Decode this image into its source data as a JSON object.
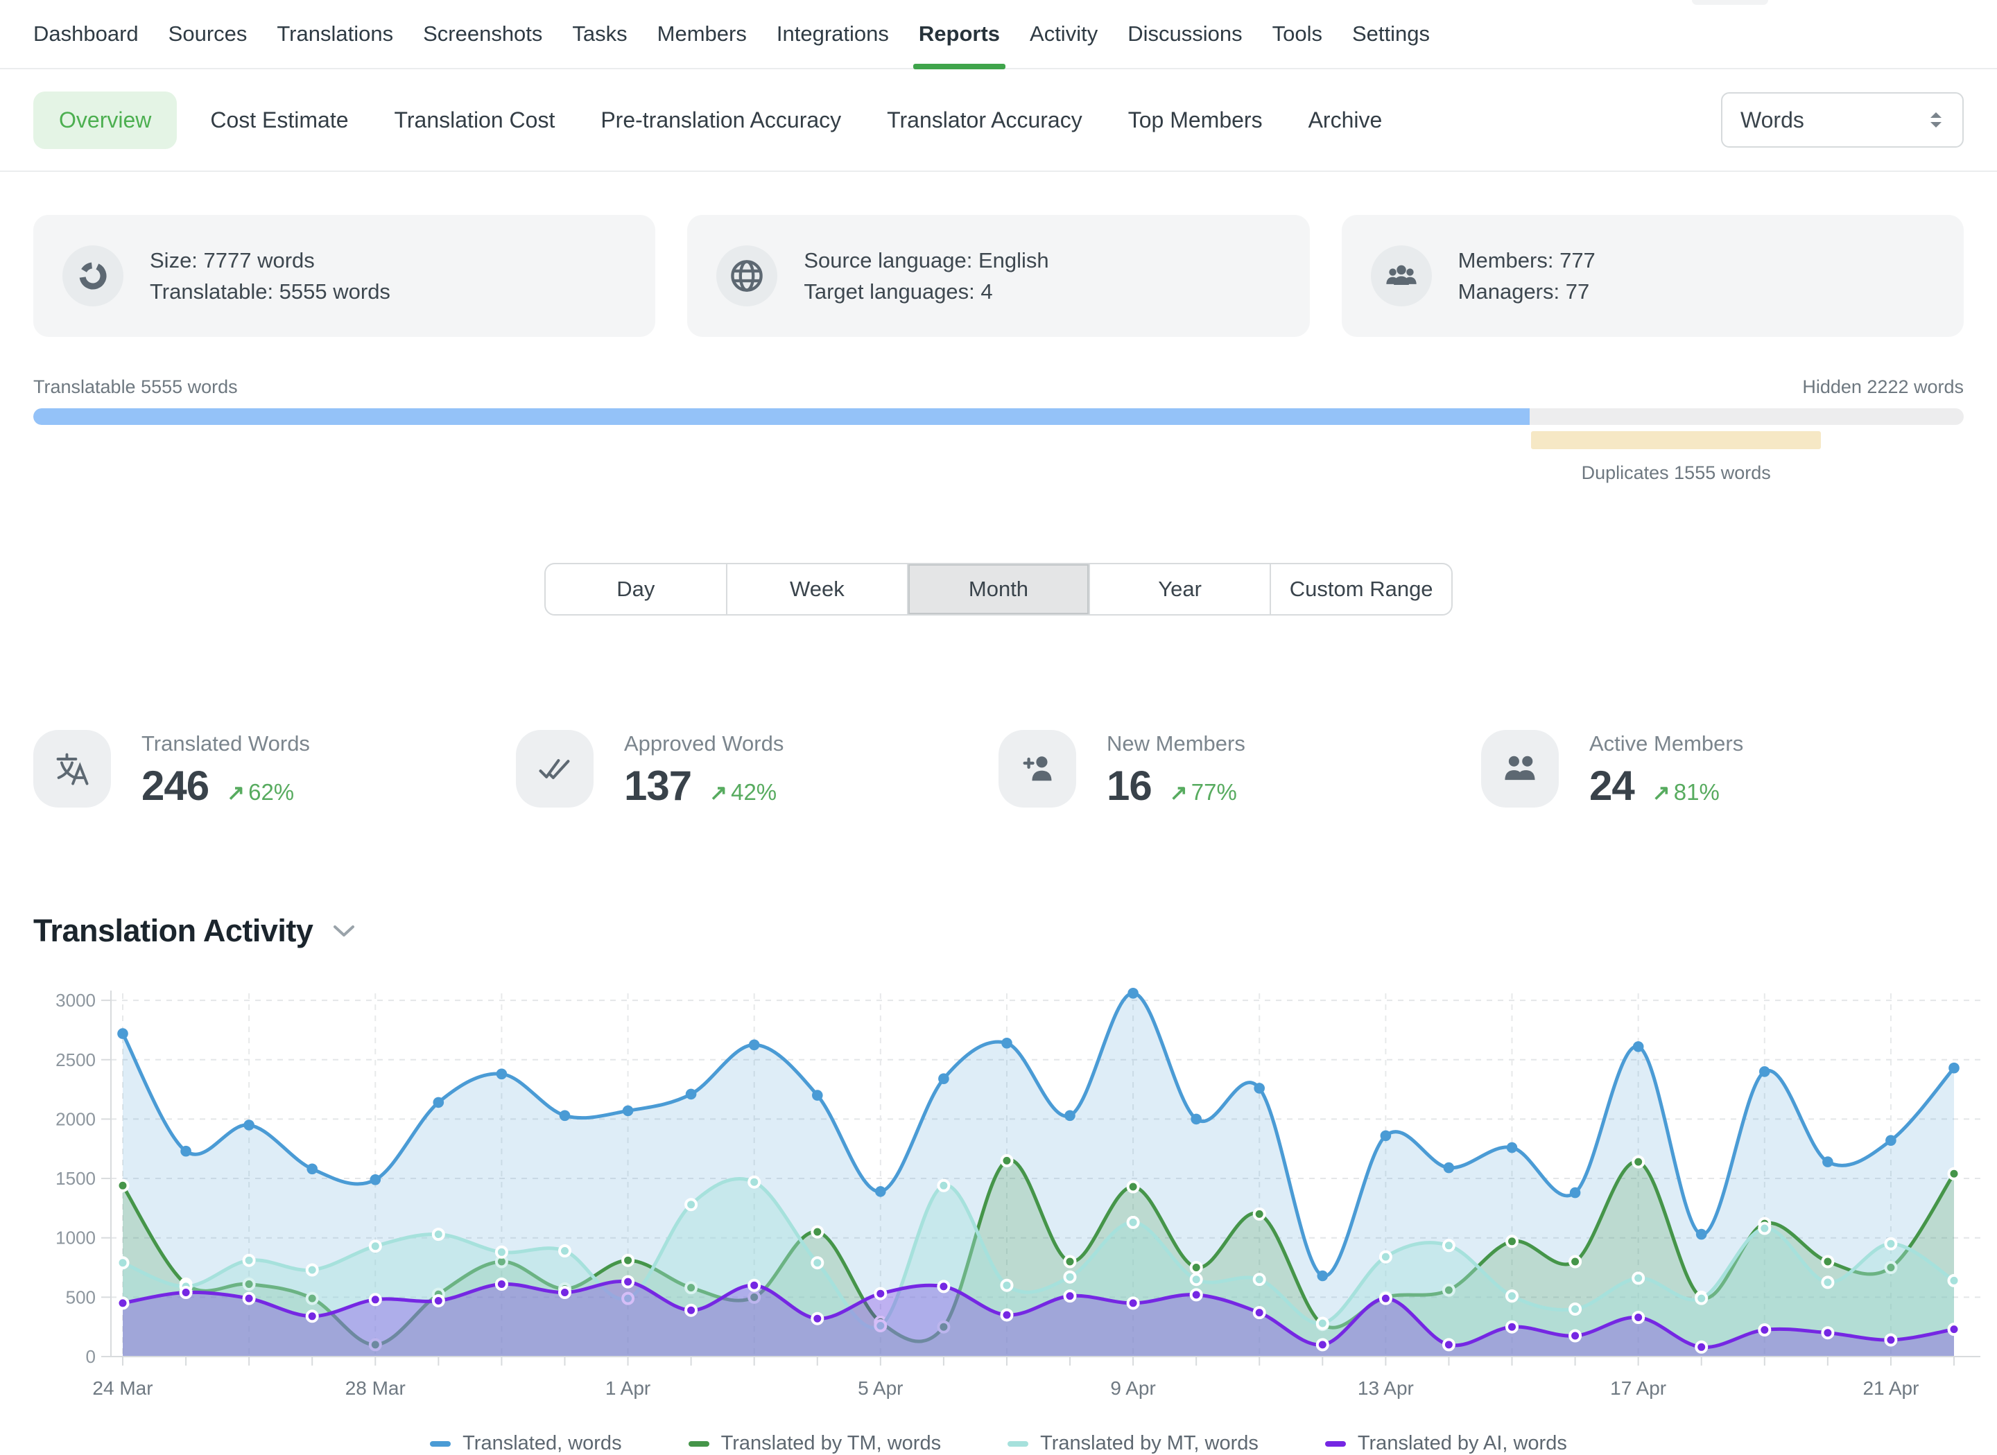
{
  "nav": {
    "items": [
      "Dashboard",
      "Sources",
      "Translations",
      "Screenshots",
      "Tasks",
      "Members",
      "Integrations",
      "Reports",
      "Activity",
      "Discussions",
      "Tools",
      "Settings"
    ],
    "active": "Reports"
  },
  "subnav": {
    "items": [
      "Overview",
      "Cost Estimate",
      "Translation Cost",
      "Pre-translation Accuracy",
      "Translator Accuracy",
      "Top Members",
      "Archive"
    ],
    "active": "Overview",
    "unit_select": {
      "value": "Words"
    }
  },
  "summary_cards": [
    {
      "icon": "donut-chart-icon",
      "lines": [
        "Size: 7777 words",
        "Translatable: 5555 words"
      ]
    },
    {
      "icon": "globe-icon",
      "lines": [
        "Source language: English",
        "Target languages: 4"
      ]
    },
    {
      "icon": "members-group-icon",
      "lines": [
        "Members: 777",
        "Managers: 77"
      ]
    }
  ],
  "words_breakdown": {
    "left_label": "Translatable 5555 words",
    "right_label": "Hidden 2222 words",
    "duplicates_label": "Duplicates 1555 words",
    "translatable_pct": 77.5,
    "duplicates_pct": 15.0,
    "duplicates_offset_pct": 77.6,
    "colors": {
      "translatable": "#94c2f8",
      "hidden": "#ededee",
      "duplicates": "#f6e8c5"
    }
  },
  "range_tabs": {
    "items": [
      "Day",
      "Week",
      "Month",
      "Year",
      "Custom Range"
    ],
    "active": "Month"
  },
  "stats": [
    {
      "icon": "translate-icon",
      "label": "Translated Words",
      "value": "246",
      "arrow": "↗",
      "delta": "62%"
    },
    {
      "icon": "double-check-icon",
      "label": "Approved Words",
      "value": "137",
      "arrow": "↗",
      "delta": "42%"
    },
    {
      "icon": "add-member-icon",
      "label": "New Members",
      "value": "16",
      "arrow": "↗",
      "delta": "77%"
    },
    {
      "icon": "two-members-icon",
      "label": "Active Members",
      "value": "24",
      "arrow": "↗",
      "delta": "81%"
    }
  ],
  "section": {
    "title": "Translation Activity"
  },
  "colors": {
    "accent_green": "#43a047",
    "delta_green": "#57ab5f"
  },
  "chart_data": {
    "type": "area",
    "title": "Translation Activity",
    "x": [
      "24 Mar",
      "25 Mar",
      "26 Mar",
      "27 Mar",
      "28 Mar",
      "29 Mar",
      "30 Mar",
      "31 Mar",
      "1 Apr",
      "2 Apr",
      "3 Apr",
      "4 Apr",
      "5 Apr",
      "6 Apr",
      "7 Apr",
      "8 Apr",
      "9 Apr",
      "10 Apr",
      "11 Apr",
      "12 Apr",
      "13 Apr",
      "14 Apr",
      "15 Apr",
      "16 Apr",
      "17 Apr",
      "18 Apr",
      "19 Apr",
      "20 Apr",
      "21 Apr",
      "22 Apr"
    ],
    "x_tick_labels": [
      "24 Mar",
      "28 Mar",
      "1 Apr",
      "5 Apr",
      "9 Apr",
      "13 Apr",
      "17 Apr",
      "21 Apr"
    ],
    "x_tick_indices": [
      0,
      4,
      8,
      12,
      16,
      20,
      24,
      28
    ],
    "yticks": [
      0,
      500,
      1000,
      1500,
      2000,
      2500,
      3000
    ],
    "ylim": [
      0,
      3250
    ],
    "grid": true,
    "legend_position": "bottom",
    "series": [
      {
        "name": "Translated, words",
        "color": "#4a9bd5",
        "fill_opacity": 0.18,
        "dot_ring": false,
        "values": [
          2720,
          1730,
          1950,
          1580,
          1490,
          2140,
          2380,
          2030,
          2070,
          2210,
          2625,
          2200,
          1390,
          2340,
          2640,
          2030,
          3060,
          2000,
          2260,
          680,
          1860,
          1590,
          1760,
          1380,
          2610,
          1030,
          2400,
          1640,
          1820,
          2430
        ]
      },
      {
        "name": "Translated by TM, words",
        "color": "#459549",
        "fill_opacity": 0.22,
        "dot_ring": true,
        "values": [
          1440,
          610,
          610,
          490,
          100,
          525,
          800,
          570,
          810,
          580,
          500,
          1050,
          290,
          250,
          1650,
          800,
          1430,
          750,
          1200,
          270,
          500,
          560,
          970,
          800,
          1640,
          500,
          1120,
          800,
          750,
          1540
        ]
      },
      {
        "name": "Translated by MT, words",
        "color": "#a6e1dc",
        "fill_opacity": 0.4,
        "dot_ring": true,
        "values": [
          790,
          590,
          810,
          730,
          930,
          1030,
          880,
          890,
          490,
          1280,
          1470,
          790,
          260,
          1440,
          600,
          670,
          1130,
          650,
          650,
          280,
          840,
          935,
          510,
          400,
          660,
          490,
          1080,
          625,
          950,
          640
        ]
      },
      {
        "name": "Translated by AI, words",
        "color": "#7527e3",
        "fill_opacity": 0.3,
        "dot_ring": true,
        "values": [
          450,
          540,
          490,
          340,
          480,
          470,
          610,
          540,
          630,
          390,
          600,
          320,
          530,
          590,
          350,
          510,
          450,
          520,
          370,
          100,
          490,
          100,
          250,
          175,
          330,
          80,
          225,
          200,
          140,
          230
        ]
      }
    ]
  }
}
